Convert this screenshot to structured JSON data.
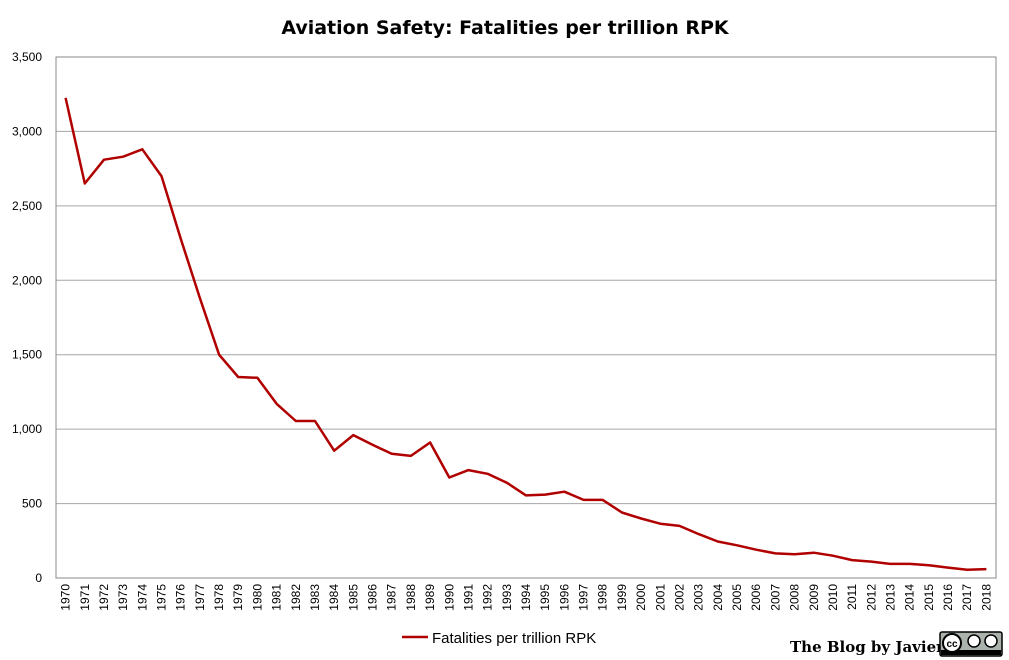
{
  "chart_data": {
    "type": "line",
    "title": "Aviation Safety: Fatalities per trillion RPK",
    "xlabel": "",
    "ylabel": "",
    "ylim": [
      0,
      3500
    ],
    "yticks": [
      "0",
      "500",
      "1,000",
      "1,500",
      "2,000",
      "2,500",
      "3,000",
      "3,500"
    ],
    "grid": true,
    "legend_placement": "bottom",
    "x": [
      1970,
      1971,
      1972,
      1973,
      1974,
      1975,
      1976,
      1977,
      1978,
      1979,
      1980,
      1981,
      1982,
      1983,
      1984,
      1985,
      1986,
      1987,
      1988,
      1989,
      1990,
      1991,
      1992,
      1993,
      1994,
      1995,
      1996,
      1997,
      1998,
      1999,
      2000,
      2001,
      2002,
      2003,
      2004,
      2005,
      2006,
      2007,
      2008,
      2009,
      2010,
      2011,
      2012,
      2013,
      2014,
      2015,
      2016,
      2017,
      2018
    ],
    "series": [
      {
        "name": "Fatalities per trillion RPK",
        "color": "#b00000",
        "values": [
          3225,
          2650,
          2810,
          2830,
          2880,
          2700,
          2280,
          1880,
          1500,
          1350,
          1345,
          1170,
          1055,
          1055,
          855,
          960,
          895,
          835,
          820,
          910,
          675,
          725,
          700,
          640,
          555,
          560,
          580,
          525,
          525,
          440,
          400,
          365,
          350,
          295,
          245,
          220,
          190,
          165,
          160,
          170,
          150,
          120,
          110,
          95,
          95,
          85,
          70,
          55,
          60
        ]
      }
    ]
  },
  "watermark": {
    "text": "The Blog by Javier",
    "license": "CC BY SA"
  }
}
